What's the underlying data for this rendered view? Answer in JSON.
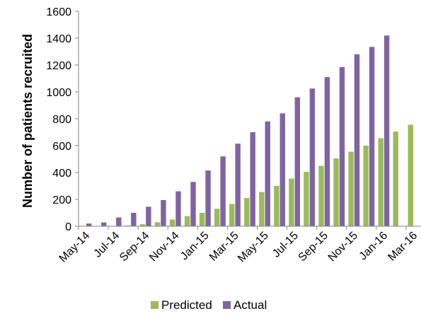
{
  "chart_data": {
    "type": "bar",
    "title": "",
    "xlabel": "",
    "ylabel": "Number of patients recruited",
    "ylim": [
      0,
      1600
    ],
    "yticks": [
      0,
      200,
      400,
      600,
      800,
      1000,
      1200,
      1400,
      1600
    ],
    "grid": false,
    "legend_position": "bottom",
    "categories": [
      "May-14",
      "Jun-14",
      "Jul-14",
      "Aug-14",
      "Sep-14",
      "Oct-14",
      "Nov-14",
      "Dec-14",
      "Jan-15",
      "Feb-15",
      "Mar-15",
      "Apr-15",
      "May-15",
      "Jun-15",
      "Jul-15",
      "Aug-15",
      "Sep-15",
      "Oct-15",
      "Nov-15",
      "Dec-15",
      "Jan-16",
      "Feb-16",
      "Mar-16"
    ],
    "tick_labels": [
      "May-14",
      "",
      "Jul-14",
      "",
      "Sep-14",
      "",
      "Nov-14",
      "",
      "Jan-15",
      "",
      "Mar-15",
      "",
      "May-15",
      "",
      "Jul-15",
      "",
      "Sep-15",
      "",
      "Nov-15",
      "",
      "Jan-16",
      "",
      "Mar-16"
    ],
    "series": [
      {
        "name": "Predicted",
        "color": "#9bbb59",
        "values": [
          0,
          0,
          0,
          5,
          15,
          30,
          50,
          75,
          100,
          130,
          165,
          210,
          255,
          300,
          355,
          405,
          450,
          505,
          555,
          600,
          655,
          705,
          755
        ]
      },
      {
        "name": "Actual",
        "color": "#8064a2",
        "values": [
          20,
          28,
          65,
          100,
          145,
          195,
          260,
          330,
          415,
          520,
          615,
          700,
          780,
          840,
          960,
          1025,
          1110,
          1185,
          1280,
          1335,
          1420,
          null,
          null
        ]
      }
    ]
  }
}
